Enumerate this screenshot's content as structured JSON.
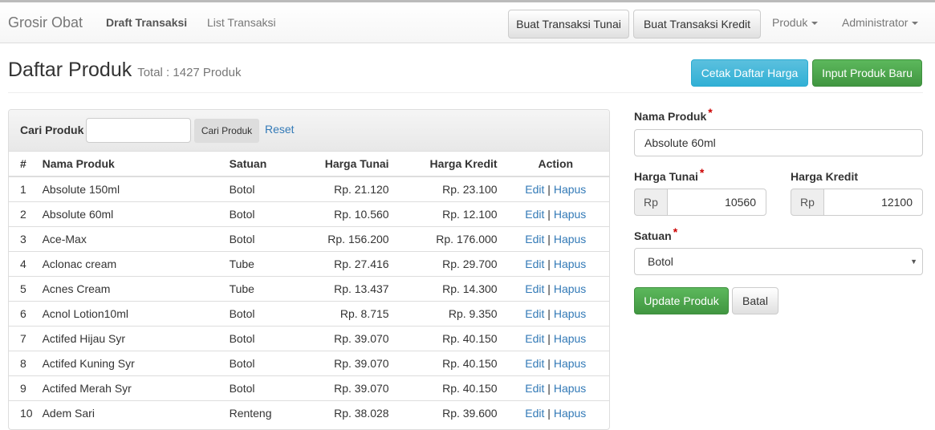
{
  "nav": {
    "brand": "Grosir Obat",
    "links": [
      "Draft Transaksi",
      "List Transaksi"
    ],
    "btn_tunai": "Buat Transaksi Tunai",
    "btn_kredit": "Buat Transaksi Kredit",
    "produk": "Produk",
    "admin": "Administrator"
  },
  "page": {
    "title": "Daftar Produk",
    "subtitle": "Total : 1427 Produk",
    "cetak": "Cetak Daftar Harga",
    "input_baru": "Input Produk Baru"
  },
  "search": {
    "label": "Cari Produk",
    "value": "",
    "button": "Cari Produk",
    "reset": "Reset"
  },
  "table": {
    "headers": [
      "#",
      "Nama Produk",
      "Satuan",
      "Harga Tunai",
      "Harga Kredit",
      "Action"
    ],
    "edit": "Edit",
    "sep": "|",
    "hapus": "Hapus",
    "rows": [
      [
        "1",
        "Absolute 150ml",
        "Botol",
        "Rp. 21.120",
        "Rp. 23.100"
      ],
      [
        "2",
        "Absolute 60ml",
        "Botol",
        "Rp. 10.560",
        "Rp. 12.100"
      ],
      [
        "3",
        "Ace-Max",
        "Botol",
        "Rp. 156.200",
        "Rp. 176.000"
      ],
      [
        "4",
        "Aclonac cream",
        "Tube",
        "Rp. 27.416",
        "Rp. 29.700"
      ],
      [
        "5",
        "Acnes Cream",
        "Tube",
        "Rp. 13.437",
        "Rp. 14.300"
      ],
      [
        "6",
        "Acnol Lotion10ml",
        "Botol",
        "Rp. 8.715",
        "Rp. 9.350"
      ],
      [
        "7",
        "Actifed Hijau Syr",
        "Botol",
        "Rp. 39.070",
        "Rp. 40.150"
      ],
      [
        "8",
        "Actifed Kuning Syr",
        "Botol",
        "Rp. 39.070",
        "Rp. 40.150"
      ],
      [
        "9",
        "Actifed Merah Syr",
        "Botol",
        "Rp. 39.070",
        "Rp. 40.150"
      ],
      [
        "10",
        "Adem Sari",
        "Renteng",
        "Rp. 38.028",
        "Rp. 39.600"
      ]
    ]
  },
  "form": {
    "nama_label": "Nama Produk",
    "nama_value": "Absolute 60ml",
    "tunai_label": "Harga Tunai",
    "kredit_label": "Harga Kredit",
    "rp": "Rp",
    "tunai_value": "10560",
    "kredit_value": "12100",
    "satuan_label": "Satuan",
    "satuan_value": "Botol",
    "required": "*",
    "update": "Update Produk",
    "batal": "Batal"
  }
}
